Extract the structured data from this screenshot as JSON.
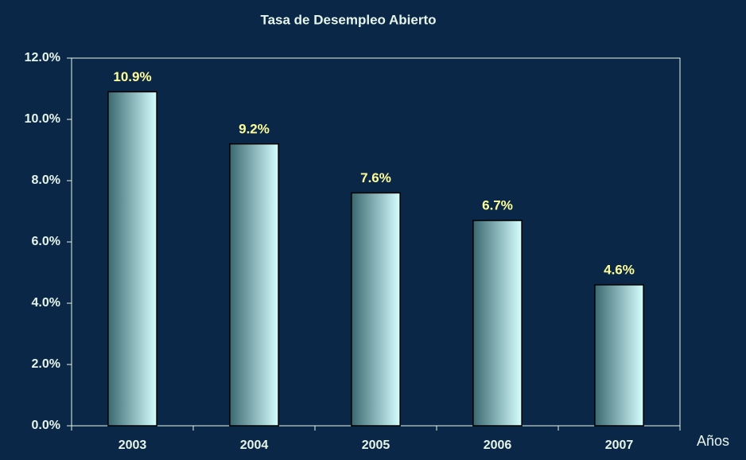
{
  "chart_data": {
    "type": "bar",
    "title": "Tasa de Desempleo Abierto",
    "x_label": "Años",
    "categories": [
      "2003",
      "2004",
      "2005",
      "2006",
      "2007"
    ],
    "values": [
      10.9,
      9.2,
      7.6,
      6.7,
      4.6
    ],
    "value_labels": [
      "10.9%",
      "9.2%",
      "7.6%",
      "6.7%",
      "4.6%"
    ],
    "colors": [
      "#3b6870",
      "#d6ffff"
    ],
    "ylim": [
      0,
      12
    ],
    "yticks": [
      {
        "value": 0,
        "label": "0.0%"
      },
      {
        "value": 2,
        "label": "2.0%"
      },
      {
        "value": 4,
        "label": "4.0%"
      },
      {
        "value": 6,
        "label": "6.0%"
      },
      {
        "value": 8,
        "label": "8.0%"
      },
      {
        "value": 10,
        "label": "10.0%"
      },
      {
        "value": 12,
        "label": "12.0%"
      }
    ],
    "grid": false
  }
}
